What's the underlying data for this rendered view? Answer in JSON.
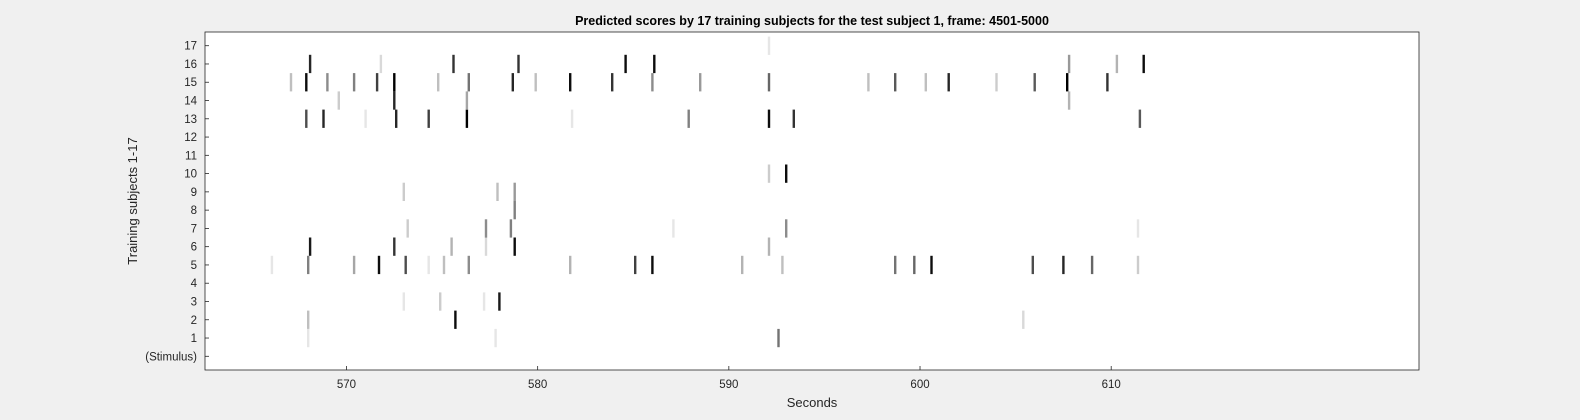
{
  "chart_data": {
    "type": "heatmap",
    "title": "Predicted scores by 17 training subjects for the test subject 1, frame: 4501-5000",
    "xlabel": "Seconds",
    "ylabel": "Training subjects 1-17",
    "xlim": [
      562.6,
      626.1
    ],
    "xticks": [
      570,
      580,
      590,
      600,
      610
    ],
    "row_labels": [
      "(Stimulus)",
      "1",
      "2",
      "3",
      "4",
      "5",
      "6",
      "7",
      "8",
      "9",
      "10",
      "11",
      "12",
      "13",
      "14",
      "15",
      "16",
      "17"
    ],
    "grid": false,
    "colormap": "white-to-black (0 = white, 1 = black)",
    "background_color": "#f0f0f0",
    "axes_color": "#ffffff",
    "rows": [
      {
        "label": "1",
        "marks": [
          [
            568.0,
            0.1
          ],
          [
            577.8,
            0.1
          ],
          [
            592.6,
            0.55
          ]
        ]
      },
      {
        "label": "2",
        "marks": [
          [
            568.0,
            0.25
          ],
          [
            575.7,
            0.95
          ],
          [
            605.4,
            0.15
          ]
        ]
      },
      {
        "label": "3",
        "marks": [
          [
            573.0,
            0.1
          ],
          [
            574.9,
            0.2
          ],
          [
            577.2,
            0.1
          ],
          [
            578.0,
            0.9
          ]
        ]
      },
      {
        "label": "4",
        "marks": []
      },
      {
        "label": "5",
        "marks": [
          [
            566.1,
            0.1
          ],
          [
            568.0,
            0.5
          ],
          [
            570.4,
            0.35
          ],
          [
            571.7,
            0.95
          ],
          [
            573.1,
            0.7
          ],
          [
            574.3,
            0.1
          ],
          [
            575.1,
            0.25
          ],
          [
            576.4,
            0.45
          ],
          [
            581.7,
            0.3
          ],
          [
            585.1,
            0.75
          ],
          [
            586.0,
            0.95
          ],
          [
            590.7,
            0.3
          ],
          [
            592.8,
            0.25
          ],
          [
            598.7,
            0.55
          ],
          [
            599.7,
            0.6
          ],
          [
            600.6,
            0.95
          ],
          [
            605.9,
            0.7
          ],
          [
            607.5,
            0.85
          ],
          [
            609.0,
            0.6
          ],
          [
            611.4,
            0.2
          ]
        ]
      },
      {
        "label": "6",
        "marks": [
          [
            568.1,
            0.9
          ],
          [
            572.5,
            0.8
          ],
          [
            575.5,
            0.3
          ],
          [
            577.3,
            0.15
          ],
          [
            578.8,
            0.95
          ],
          [
            592.1,
            0.3
          ]
        ]
      },
      {
        "label": "7",
        "marks": [
          [
            573.2,
            0.2
          ],
          [
            577.3,
            0.45
          ],
          [
            578.6,
            0.5
          ],
          [
            587.1,
            0.1
          ],
          [
            593.0,
            0.45
          ],
          [
            611.4,
            0.1
          ]
        ]
      },
      {
        "label": "8",
        "marks": [
          [
            578.8,
            0.5
          ]
        ]
      },
      {
        "label": "9",
        "marks": [
          [
            573.0,
            0.2
          ],
          [
            577.9,
            0.25
          ],
          [
            578.8,
            0.4
          ]
        ]
      },
      {
        "label": "10",
        "marks": [
          [
            592.1,
            0.2
          ],
          [
            593.0,
            0.95
          ]
        ]
      },
      {
        "label": "11",
        "marks": []
      },
      {
        "label": "12",
        "marks": []
      },
      {
        "label": "13",
        "marks": [
          [
            567.9,
            0.7
          ],
          [
            568.8,
            0.85
          ],
          [
            571.0,
            0.1
          ],
          [
            572.6,
            0.85
          ],
          [
            574.3,
            0.75
          ],
          [
            576.3,
            1.0
          ],
          [
            581.8,
            0.1
          ],
          [
            587.9,
            0.5
          ],
          [
            592.1,
            0.95
          ],
          [
            593.4,
            0.8
          ],
          [
            611.5,
            0.65
          ]
        ]
      },
      {
        "label": "14",
        "marks": [
          [
            569.6,
            0.2
          ],
          [
            572.5,
            0.85
          ],
          [
            576.3,
            0.35
          ],
          [
            607.8,
            0.3
          ]
        ]
      },
      {
        "label": "15",
        "marks": [
          [
            567.1,
            0.25
          ],
          [
            567.9,
            0.95
          ],
          [
            569.0,
            0.45
          ],
          [
            570.4,
            0.5
          ],
          [
            571.6,
            0.75
          ],
          [
            572.5,
            1.0
          ],
          [
            574.8,
            0.25
          ],
          [
            576.4,
            0.55
          ],
          [
            578.7,
            0.85
          ],
          [
            579.9,
            0.25
          ],
          [
            581.7,
            0.95
          ],
          [
            583.9,
            0.8
          ],
          [
            586.0,
            0.45
          ],
          [
            588.5,
            0.4
          ],
          [
            592.1,
            0.6
          ],
          [
            597.3,
            0.25
          ],
          [
            598.7,
            0.65
          ],
          [
            600.3,
            0.25
          ],
          [
            601.5,
            0.85
          ],
          [
            604.0,
            0.2
          ],
          [
            606.0,
            0.65
          ],
          [
            607.7,
            1.0
          ],
          [
            609.8,
            0.8
          ]
        ]
      },
      {
        "label": "16",
        "marks": [
          [
            568.1,
            0.85
          ],
          [
            571.8,
            0.15
          ],
          [
            575.6,
            0.8
          ],
          [
            579.0,
            0.8
          ],
          [
            584.6,
            0.95
          ],
          [
            586.1,
            0.95
          ],
          [
            607.8,
            0.4
          ],
          [
            610.3,
            0.3
          ],
          [
            611.7,
            0.95
          ]
        ]
      },
      {
        "label": "17",
        "marks": [
          [
            592.1,
            0.1
          ]
        ]
      }
    ]
  }
}
